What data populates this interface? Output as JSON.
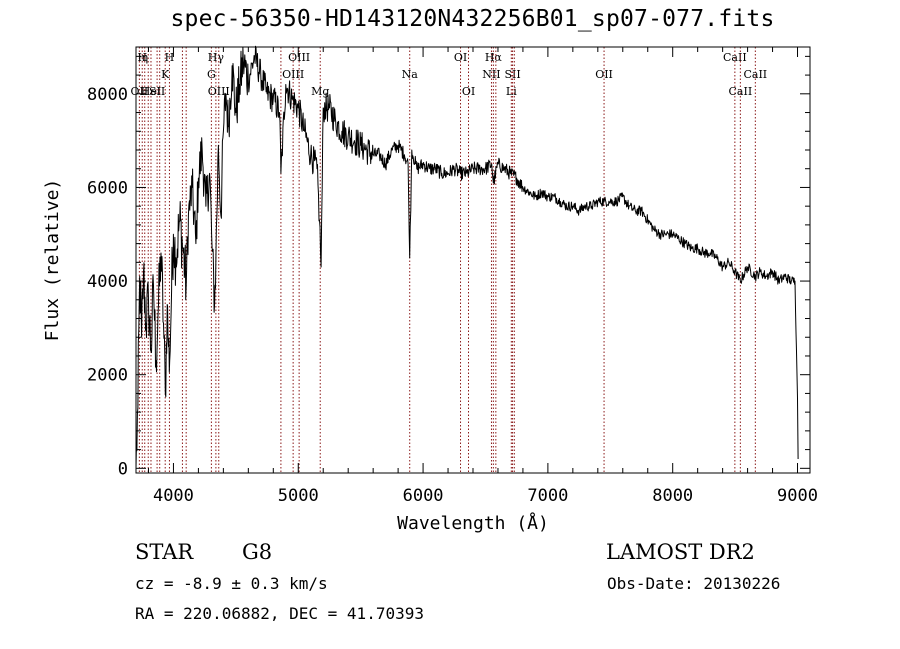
{
  "chart_data": {
    "type": "line",
    "title": "spec-56350-HD143120N432256B01_sp07-077.fits",
    "xlabel": "Wavelength (Å)",
    "ylabel": "Flux (relative)",
    "xlim": [
      3700,
      9100
    ],
    "ylim": [
      -100,
      9000
    ],
    "xticks": [
      4000,
      5000,
      6000,
      7000,
      8000,
      9000
    ],
    "yticks": [
      0,
      2000,
      4000,
      6000,
      8000
    ],
    "xtick_labels": [
      "4000",
      "5000",
      "6000",
      "7000",
      "8000",
      "9000"
    ],
    "ytick_labels": [
      "0",
      "2000",
      "4000",
      "6000",
      "8000"
    ],
    "series": [
      {
        "x": [
          3700,
          3715,
          3730,
          3745,
          3760,
          3780,
          3800,
          3820,
          3840,
          3860,
          3880,
          3900,
          3920,
          3935,
          3950,
          3960,
          3970,
          3985,
          4000,
          4020,
          4050,
          4080,
          4102,
          4120,
          4150,
          4180,
          4200,
          4230,
          4260,
          4290,
          4310,
          4330,
          4340,
          4360,
          4380,
          4400,
          4420,
          4440,
          4470,
          4500,
          4530,
          4560,
          4600,
          4650,
          4700,
          4750,
          4800,
          4850,
          4861,
          4900,
          4950,
          5000,
          5050,
          5100,
          5150,
          5170,
          5183,
          5200,
          5250,
          5300,
          5350,
          5400,
          5450,
          5500,
          5550,
          5600,
          5650,
          5700,
          5750,
          5800,
          5850,
          5880,
          5893,
          5910,
          5950,
          6000,
          6050,
          6100,
          6150,
          6200,
          6250,
          6300,
          6350,
          6400,
          6450,
          6500,
          6550,
          6563,
          6600,
          6650,
          6700,
          6750,
          6800,
          6850,
          6900,
          6950,
          7000,
          7050,
          7100,
          7150,
          7200,
          7250,
          7300,
          7350,
          7400,
          7450,
          7500,
          7550,
          7600,
          7650,
          7700,
          7750,
          7800,
          7850,
          7900,
          7950,
          8000,
          8050,
          8100,
          8150,
          8200,
          8250,
          8300,
          8350,
          8400,
          8450,
          8498,
          8542,
          8600,
          8662,
          8700,
          8750,
          8800,
          8850,
          8900,
          8950,
          8980,
          9000,
          9005
        ],
        "y": [
          0,
          1300,
          4100,
          2800,
          4200,
          3100,
          3600,
          2500,
          3900,
          2300,
          3500,
          4600,
          3100,
          1600,
          3500,
          2600,
          2300,
          3800,
          5000,
          4500,
          5300,
          4600,
          3900,
          5400,
          6000,
          4800,
          6200,
          6800,
          5600,
          6300,
          4700,
          3500,
          4500,
          6900,
          5400,
          7200,
          8000,
          7300,
          8600,
          7600,
          8200,
          8700,
          8300,
          8800,
          8400,
          8000,
          7900,
          7600,
          6300,
          8200,
          7900,
          7700,
          7200,
          6700,
          6400,
          5300,
          4300,
          7700,
          7700,
          7400,
          7200,
          7100,
          7000,
          6900,
          6800,
          6700,
          6700,
          6500,
          6800,
          6900,
          6700,
          6500,
          4500,
          6800,
          6400,
          6500,
          6400,
          6400,
          6300,
          6300,
          6400,
          6300,
          6300,
          6400,
          6400,
          6400,
          6500,
          6100,
          6500,
          6400,
          6300,
          6200,
          6000,
          5900,
          5800,
          5900,
          5800,
          5800,
          5700,
          5600,
          5600,
          5500,
          5600,
          5600,
          5700,
          5700,
          5700,
          5700,
          5800,
          5600,
          5500,
          5500,
          5300,
          5100,
          5000,
          5000,
          5000,
          4900,
          4800,
          4700,
          4700,
          4600,
          4600,
          4500,
          4300,
          4400,
          4200,
          4000,
          4300,
          4100,
          4200,
          4100,
          4200,
          4000,
          4100,
          4000,
          4000,
          1500,
          200
        ]
      }
    ],
    "lines": [
      {
        "x": 3727,
        "labels": [
          {
            "text": "OII",
            "row": 2
          }
        ]
      },
      {
        "x": 3750,
        "labels": [
          {
            "text": "H",
            "row": 0
          }
        ]
      },
      {
        "x": 3770,
        "labels": [
          {
            "text": "η",
            "row": 0
          }
        ]
      },
      {
        "x": 3798,
        "labels": []
      },
      {
        "x": 3820,
        "labels": [
          {
            "text": "HeI",
            "row": 2
          }
        ]
      },
      {
        "x": 3869,
        "labels": [
          {
            "text": "SII",
            "row": 2
          }
        ]
      },
      {
        "x": 3890,
        "labels": []
      },
      {
        "x": 3934,
        "labels": [
          {
            "text": "K",
            "row": 1
          }
        ]
      },
      {
        "x": 3968,
        "labels": [
          {
            "text": "H",
            "row": 0
          }
        ]
      },
      {
        "x": 4072,
        "labels": []
      },
      {
        "x": 4102,
        "labels": []
      },
      {
        "x": 4304,
        "labels": [
          {
            "text": "G",
            "row": 1
          }
        ]
      },
      {
        "x": 4340,
        "labels": [
          {
            "text": "Hγ",
            "row": 0
          }
        ]
      },
      {
        "x": 4363,
        "labels": [
          {
            "text": "OIII",
            "row": 2
          }
        ]
      },
      {
        "x": 4861,
        "labels": []
      },
      {
        "x": 4959,
        "labels": [
          {
            "text": "OIII",
            "row": 1
          }
        ]
      },
      {
        "x": 5007,
        "labels": [
          {
            "text": "OIII",
            "row": 0
          }
        ]
      },
      {
        "x": 5176,
        "labels": [
          {
            "text": "Mg",
            "row": 2
          }
        ]
      },
      {
        "x": 5893,
        "labels": [
          {
            "text": "Na",
            "row": 1
          }
        ]
      },
      {
        "x": 6300,
        "labels": [
          {
            "text": "OI",
            "row": 0
          }
        ]
      },
      {
        "x": 6364,
        "labels": [
          {
            "text": "OI",
            "row": 2
          }
        ]
      },
      {
        "x": 6548,
        "labels": [
          {
            "text": "NII",
            "row": 1
          }
        ]
      },
      {
        "x": 6563,
        "labels": [
          {
            "text": "Hα",
            "row": 0
          }
        ]
      },
      {
        "x": 6583,
        "labels": []
      },
      {
        "x": 6707,
        "labels": [
          {
            "text": "Li",
            "row": 2
          }
        ]
      },
      {
        "x": 6717,
        "labels": [
          {
            "text": "SII",
            "row": 1
          }
        ]
      },
      {
        "x": 6731,
        "labels": []
      },
      {
        "x": 7450,
        "labels": [
          {
            "text": "OII",
            "row": 1
          }
        ]
      },
      {
        "x": 8498,
        "labels": [
          {
            "text": "CaII",
            "row": 0
          }
        ]
      },
      {
        "x": 8542,
        "labels": [
          {
            "text": "CaII",
            "row": 2
          }
        ]
      },
      {
        "x": 8662,
        "labels": [
          {
            "text": "CaII",
            "row": 1
          }
        ]
      }
    ],
    "line_color": "#8b1a1a"
  },
  "info": {
    "object_class": "STAR",
    "subclass": "G8",
    "survey": "LAMOST DR2",
    "cz": "cz = -8.9 ± 0.3 km/s",
    "obs_date": "Obs-Date: 20130226",
    "radec": "RA = 220.06882, DEC =  41.70393"
  }
}
